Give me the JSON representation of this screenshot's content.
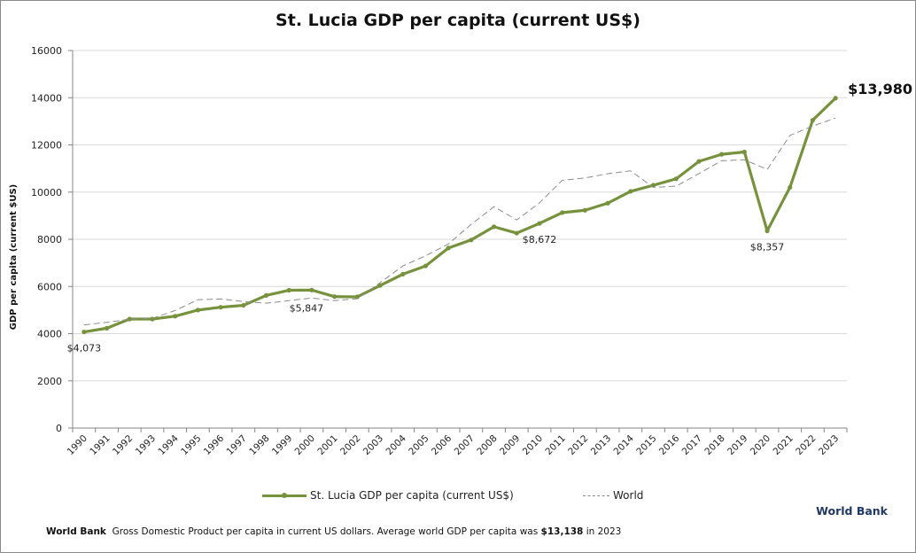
{
  "chart_data": {
    "type": "line",
    "title": "St. Lucia GDP per capita (current US$)",
    "xlabel": "",
    "ylabel": "GDP per capita (current $US)",
    "ylim": [
      0,
      16000
    ],
    "yticks": [
      "0",
      "2000",
      "4000",
      "6000",
      "8000",
      "10000",
      "12000",
      "14000",
      "16000"
    ],
    "grid": true,
    "legend_position": "bottom",
    "categories": [
      "1990",
      "1991",
      "1992",
      "1993",
      "1994",
      "1995",
      "1996",
      "1997",
      "1998",
      "1999",
      "2000",
      "2001",
      "2002",
      "2003",
      "2004",
      "2005",
      "2006",
      "2007",
      "2008",
      "2009",
      "2010",
      "2011",
      "2012",
      "2013",
      "2014",
      "2015",
      "2016",
      "2017",
      "2018",
      "2019",
      "2020",
      "2021",
      "2022",
      "2023"
    ],
    "series": [
      {
        "name": "St. Lucia GDP per capita (current US$)",
        "color": "#76923c",
        "style": "solid-with-markers",
        "values": [
          4073,
          4230,
          4620,
          4620,
          4740,
          5000,
          5120,
          5200,
          5620,
          5840,
          5847,
          5570,
          5560,
          6040,
          6520,
          6870,
          7630,
          7970,
          8530,
          8260,
          8672,
          9130,
          9230,
          9530,
          10030,
          10290,
          10560,
          11300,
          11600,
          11700,
          8357,
          10200,
          13050,
          13980
        ]
      },
      {
        "name": "World",
        "color": "#8c8c8c",
        "style": "dashed",
        "values": [
          4370,
          4480,
          4610,
          4650,
          4980,
          5440,
          5470,
          5360,
          5290,
          5400,
          5510,
          5400,
          5480,
          6160,
          6870,
          7300,
          7800,
          8630,
          9380,
          8820,
          9540,
          10500,
          10600,
          10780,
          10900,
          10200,
          10250,
          10780,
          11330,
          11370,
          10960,
          12400,
          12800,
          13138
        ]
      }
    ],
    "annotations": [
      {
        "text": "$4,073",
        "category": "1990",
        "series": 0
      },
      {
        "text": "$5,847",
        "category": "2000",
        "series": 0
      },
      {
        "text": "$8,672",
        "category": "2010",
        "series": 0
      },
      {
        "text": "$8,357",
        "category": "2020",
        "series": 0
      },
      {
        "text": "$13,980",
        "category": "2023",
        "series": 0,
        "emphasis": true
      }
    ]
  },
  "legend": {
    "items": [
      {
        "label": "St. Lucia GDP per capita (current US$)"
      },
      {
        "label": "World"
      }
    ]
  },
  "source_label": "World Bank",
  "footnote": {
    "source": "World Bank",
    "text": "Gross Domestic Product per capita in current US dollars.   Average world GDP per capita was ",
    "highlight": "$13,138",
    "suffix": " in 2023"
  }
}
